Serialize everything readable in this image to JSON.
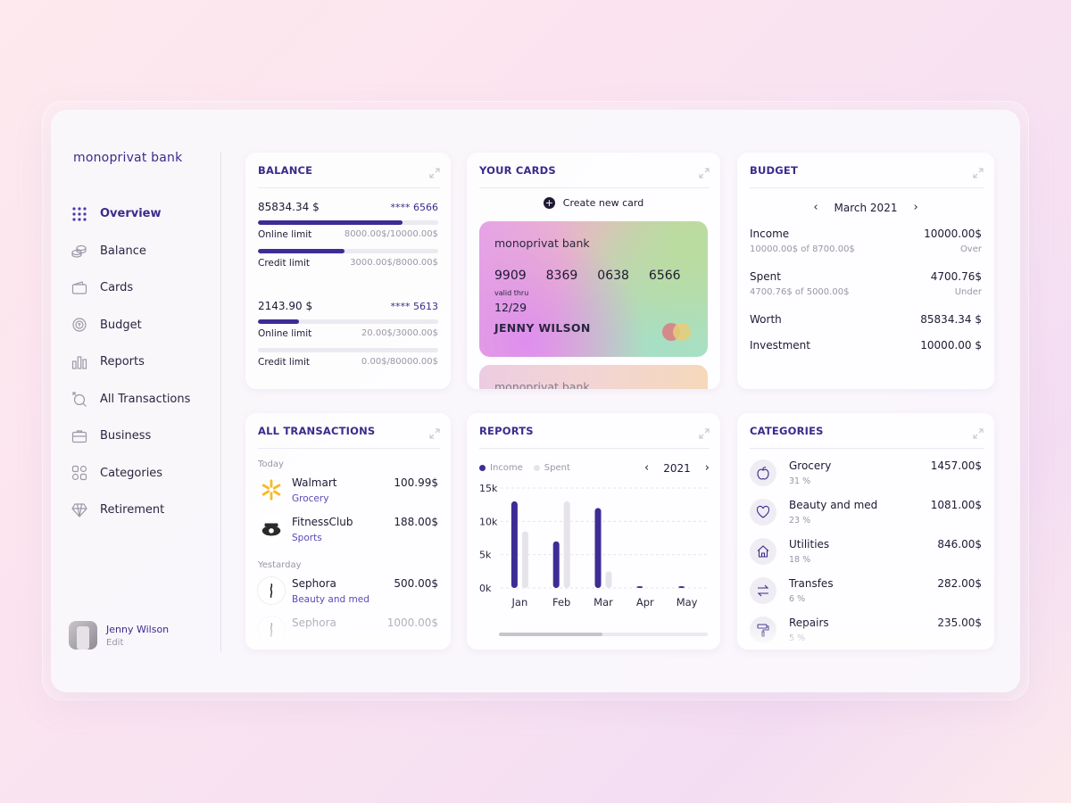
{
  "brand": "monoprivat bank",
  "nav": [
    {
      "label": "Overview",
      "icon": "grid-icon",
      "active": true
    },
    {
      "label": "Balance",
      "icon": "coins-icon"
    },
    {
      "label": "Cards",
      "icon": "wallet-icon"
    },
    {
      "label": "Budget",
      "icon": "budget-icon"
    },
    {
      "label": "Reports",
      "icon": "bar-chart-icon"
    },
    {
      "label": "All Transactions",
      "icon": "transactions-icon"
    },
    {
      "label": "Business",
      "icon": "briefcase-icon"
    },
    {
      "label": "Categories",
      "icon": "categories-icon"
    },
    {
      "label": "Retirement",
      "icon": "diamond-icon"
    }
  ],
  "user": {
    "name": "Jenny Wilson",
    "edit": "Edit"
  },
  "balance": {
    "title": "BALANCE",
    "accounts": [
      {
        "amount": "85834.34 $",
        "card": "**** 6566",
        "limits": [
          {
            "label": "Online limit",
            "value": "8000.00$/10000.00$",
            "fraction": 0.8
          },
          {
            "label": "Credit limit",
            "value": "3000.00$/8000.00$",
            "fraction": 0.48
          }
        ]
      },
      {
        "amount": "2143.90 $",
        "card": "**** 5613",
        "limits": [
          {
            "label": "Online limit",
            "value": "20.00$/3000.00$",
            "fraction": 0.23
          },
          {
            "label": "Credit limit",
            "value": "0.00$/80000.00$",
            "fraction": 0
          }
        ]
      }
    ]
  },
  "cards": {
    "title": "YOUR CARDS",
    "create_label": "Create new card",
    "card": {
      "bank": "monoprivat bank",
      "number": [
        "9909",
        "8369",
        "0638",
        "6566"
      ],
      "valid_label": "valid thru",
      "expiry": "12/29",
      "holder": "JENNY WILSON"
    },
    "card2_bank": "monoprivat bank"
  },
  "budget": {
    "title": "BUDGET",
    "month": "March 2021",
    "rows": [
      {
        "label": "Income",
        "value": "10000.00$",
        "sub_left": "10000.00$ of 8700.00$",
        "sub_right": "Over"
      },
      {
        "label": "Spent",
        "value": "4700.76$",
        "sub_left": "4700.76$ of 5000.00$",
        "sub_right": "Under"
      },
      {
        "label": "Worth",
        "value": "85834.34 $"
      },
      {
        "label": "Investment",
        "value": "10000.00 $"
      }
    ]
  },
  "transactions": {
    "title": "ALL TRANSACTIONS",
    "today_label": "Today",
    "yesterday_label": "Yestarday",
    "today": [
      {
        "name": "Walmart",
        "category": "Grocery",
        "amount": "100.99$",
        "logo": "walmart-logo-icon"
      },
      {
        "name": "FitnessClub",
        "category": "Sports",
        "amount": "188.00$",
        "logo": "fitness-logo-icon"
      }
    ],
    "yesterday": [
      {
        "name": "Sephora",
        "category": "Beauty and med",
        "amount": "500.00$",
        "logo": "sephora-logo-icon"
      },
      {
        "name": "Sephora",
        "category": "",
        "amount": "1000.00$",
        "logo": "sephora-logo-icon"
      }
    ]
  },
  "reports": {
    "title": "REPORTS",
    "year": "2021",
    "legend": {
      "income": "Income",
      "spent": "Spent"
    },
    "colors": {
      "income": "#3d2c95",
      "spent": "#e6e3ea"
    }
  },
  "chart_data": {
    "type": "bar",
    "categories": [
      "Jan",
      "Feb",
      "Mar",
      "Apr",
      "May"
    ],
    "series": [
      {
        "name": "Income",
        "values": [
          13000,
          7000,
          12000,
          200,
          200
        ]
      },
      {
        "name": "Spent",
        "values": [
          8500,
          13000,
          2500,
          0,
          0
        ]
      }
    ],
    "yticks": [
      "15k",
      "10k",
      "5k",
      "0k"
    ],
    "ylim": [
      0,
      15000
    ],
    "legend": "top-left",
    "grid": true
  },
  "categories": {
    "title": "CATEGORIES",
    "items": [
      {
        "name": "Grocery",
        "pct": "31 %",
        "amount": "1457.00$",
        "icon": "apple-icon"
      },
      {
        "name": "Beauty and med",
        "pct": "23 %",
        "amount": "1081.00$",
        "icon": "heart-icon"
      },
      {
        "name": "Utilities",
        "pct": "18 %",
        "amount": "846.00$",
        "icon": "home-icon"
      },
      {
        "name": "Transfes",
        "pct": "6 %",
        "amount": "282.00$",
        "icon": "transfer-icon"
      },
      {
        "name": "Repairs",
        "pct": "5 %",
        "amount": "235.00$",
        "icon": "paint-roller-icon"
      }
    ]
  }
}
